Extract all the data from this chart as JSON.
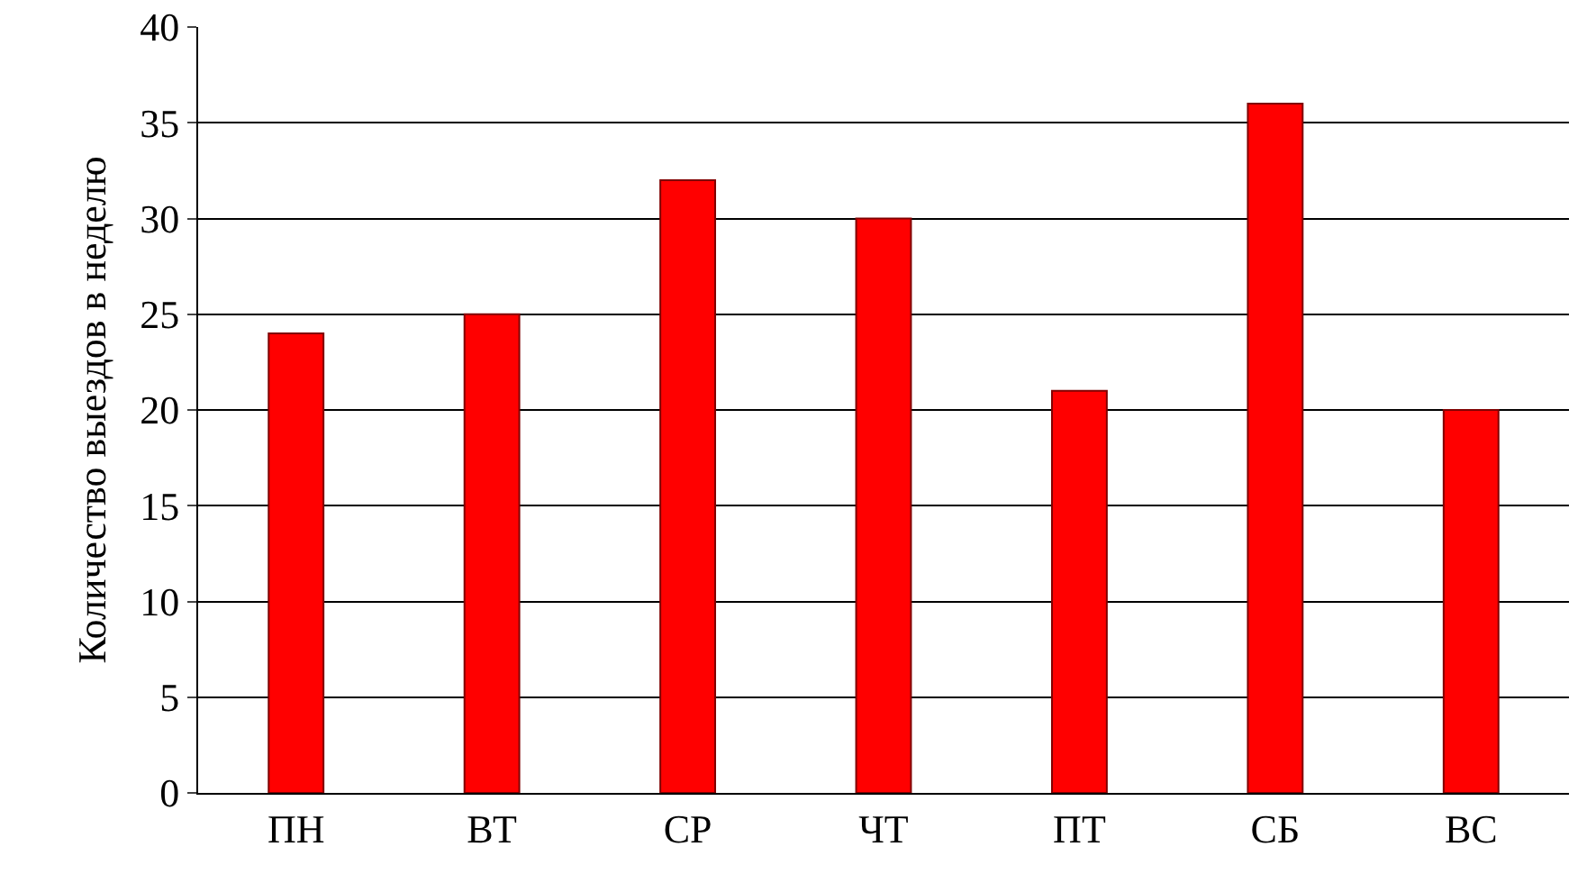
{
  "chart_data": {
    "type": "bar",
    "ylabel": "Количество выездов в неделю",
    "categories": [
      "ПН",
      "ВТ",
      "СР",
      "ЧТ",
      "ПТ",
      "СБ",
      "ВС"
    ],
    "values": [
      24,
      25,
      32,
      30,
      21,
      36,
      20
    ],
    "color": "#ff0000",
    "ylim": [
      0,
      40
    ],
    "yticks": [
      0,
      5,
      10,
      15,
      20,
      25,
      30,
      35,
      40
    ],
    "grid": "y"
  }
}
